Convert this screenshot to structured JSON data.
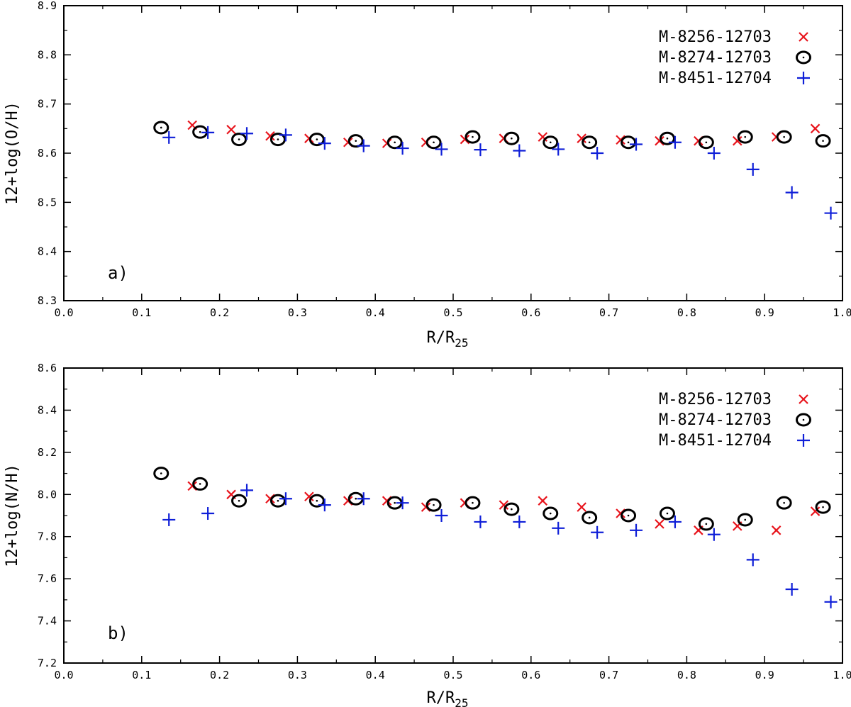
{
  "chart_data": [
    {
      "type": "scatter",
      "panel_label": "a)",
      "xlabel_main": "R/R",
      "xlabel_sub": "25",
      "ylabel": "12+log(O/H)",
      "xlim": [
        0.0,
        1.0
      ],
      "ylim": [
        8.3,
        8.9
      ],
      "xticks": [
        "0.0",
        "0.1",
        "0.2",
        "0.3",
        "0.4",
        "0.5",
        "0.6",
        "0.7",
        "0.8",
        "0.9",
        "1.0"
      ],
      "yticks": [
        "8.3",
        "8.4",
        "8.5",
        "8.6",
        "8.7",
        "8.8",
        "8.9"
      ],
      "legend_position": "top-right",
      "series": [
        {
          "name": "M-8256-12703",
          "marker": "x",
          "color": "#e8141c",
          "x": [
            0.165,
            0.215,
            0.265,
            0.315,
            0.365,
            0.415,
            0.465,
            0.515,
            0.565,
            0.615,
            0.665,
            0.715,
            0.765,
            0.815,
            0.865,
            0.915,
            0.965
          ],
          "y": [
            8.657,
            8.648,
            8.635,
            8.63,
            8.622,
            8.62,
            8.622,
            8.628,
            8.63,
            8.633,
            8.63,
            8.627,
            8.625,
            8.625,
            8.625,
            8.633,
            8.65
          ]
        },
        {
          "name": "M-8274-12703",
          "marker": "circle-dot",
          "color": "#000000",
          "x": [
            0.125,
            0.175,
            0.225,
            0.275,
            0.325,
            0.375,
            0.425,
            0.475,
            0.525,
            0.575,
            0.625,
            0.675,
            0.725,
            0.775,
            0.825,
            0.875,
            0.925,
            0.975
          ],
          "y": [
            8.652,
            8.643,
            8.628,
            8.628,
            8.628,
            8.625,
            8.622,
            8.622,
            8.633,
            8.63,
            8.622,
            8.622,
            8.622,
            8.63,
            8.622,
            8.633,
            8.633,
            8.625
          ]
        },
        {
          "name": "M-8451-12704",
          "marker": "plus",
          "color": "#0f1fd8",
          "x": [
            0.135,
            0.185,
            0.235,
            0.285,
            0.335,
            0.385,
            0.435,
            0.485,
            0.535,
            0.585,
            0.635,
            0.685,
            0.735,
            0.785,
            0.835,
            0.885,
            0.935,
            0.985
          ],
          "y": [
            8.632,
            8.642,
            8.64,
            8.637,
            8.62,
            8.615,
            8.61,
            8.608,
            8.607,
            8.605,
            8.608,
            8.6,
            8.618,
            8.622,
            8.6,
            8.567,
            8.52,
            8.478
          ]
        }
      ]
    },
    {
      "type": "scatter",
      "panel_label": "b)",
      "xlabel_main": "R/R",
      "xlabel_sub": "25",
      "ylabel": "12+log(N/H)",
      "xlim": [
        0.0,
        1.0
      ],
      "ylim": [
        7.2,
        8.6
      ],
      "xticks": [
        "0.0",
        "0.1",
        "0.2",
        "0.3",
        "0.4",
        "0.5",
        "0.6",
        "0.7",
        "0.8",
        "0.9",
        "1.0"
      ],
      "yticks": [
        "7.2",
        "7.4",
        "7.6",
        "7.8",
        "8.0",
        "8.2",
        "8.4",
        "8.6"
      ],
      "legend_position": "top-right",
      "series": [
        {
          "name": "M-8256-12703",
          "marker": "x",
          "color": "#e8141c",
          "x": [
            0.165,
            0.215,
            0.265,
            0.315,
            0.365,
            0.415,
            0.465,
            0.515,
            0.565,
            0.615,
            0.665,
            0.715,
            0.765,
            0.815,
            0.865,
            0.915,
            0.965
          ],
          "y": [
            8.04,
            8.0,
            7.98,
            7.99,
            7.97,
            7.97,
            7.94,
            7.96,
            7.95,
            7.97,
            7.94,
            7.91,
            7.86,
            7.83,
            7.85,
            7.83,
            7.92
          ]
        },
        {
          "name": "M-8274-12703",
          "marker": "circle-dot",
          "color": "#000000",
          "x": [
            0.125,
            0.175,
            0.225,
            0.275,
            0.325,
            0.375,
            0.425,
            0.475,
            0.525,
            0.575,
            0.625,
            0.675,
            0.725,
            0.775,
            0.825,
            0.875,
            0.925,
            0.975
          ],
          "y": [
            8.1,
            8.05,
            7.97,
            7.97,
            7.97,
            7.98,
            7.96,
            7.95,
            7.96,
            7.93,
            7.91,
            7.89,
            7.9,
            7.91,
            7.86,
            7.88,
            7.96,
            7.94
          ]
        },
        {
          "name": "M-8451-12704",
          "marker": "plus",
          "color": "#0f1fd8",
          "x": [
            0.135,
            0.185,
            0.235,
            0.285,
            0.335,
            0.385,
            0.435,
            0.485,
            0.535,
            0.585,
            0.635,
            0.685,
            0.735,
            0.785,
            0.835,
            0.885,
            0.935,
            0.985
          ],
          "y": [
            7.88,
            7.91,
            8.02,
            7.98,
            7.95,
            7.98,
            7.96,
            7.9,
            7.87,
            7.87,
            7.84,
            7.82,
            7.83,
            7.87,
            7.81,
            7.69,
            7.55,
            7.49
          ]
        }
      ]
    }
  ]
}
